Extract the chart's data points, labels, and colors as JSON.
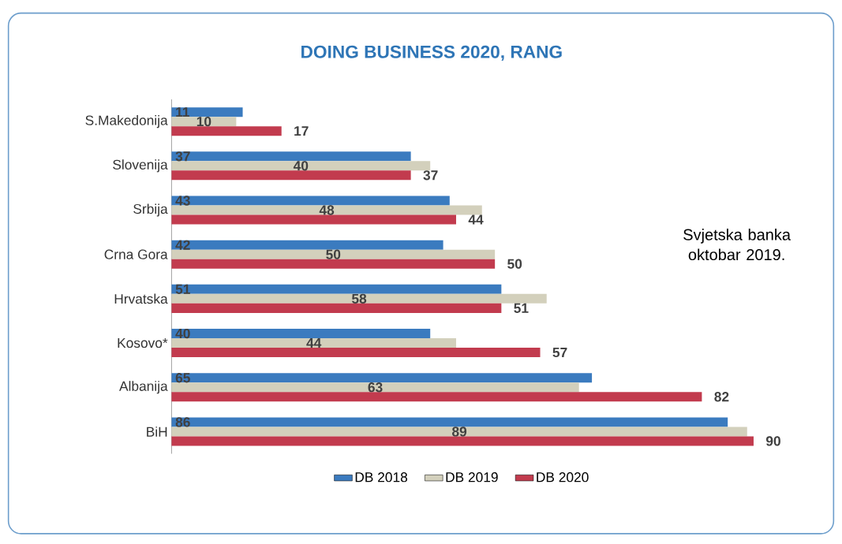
{
  "chart_data": {
    "type": "bar",
    "orientation": "horizontal",
    "title": "DOING BUSINESS 2020, RANG",
    "categories": [
      "S.Makedonija",
      "Slovenija",
      "Srbija",
      "Crna Gora",
      "Hrvatska",
      "Kosovo*",
      "Albanija",
      "BiH"
    ],
    "series": [
      {
        "name": "DB 2018",
        "color": "#3b7bbf",
        "values": [
          11,
          37,
          43,
          42,
          51,
          40,
          65,
          86
        ]
      },
      {
        "name": "DB 2019",
        "color": "#d3d0bc",
        "values": [
          10,
          40,
          48,
          50,
          58,
          44,
          63,
          89
        ]
      },
      {
        "name": "DB 2020",
        "color": "#c23b4e",
        "values": [
          17,
          37,
          44,
          50,
          51,
          57,
          82,
          90
        ]
      }
    ],
    "data_labels": true,
    "legend": "bottom",
    "annotations": [
      "Svjetska banka oktobar 2019."
    ]
  }
}
